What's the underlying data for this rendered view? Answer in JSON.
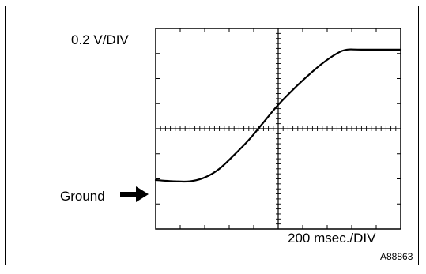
{
  "labels": {
    "vertical_scale": "0.2 V/DIV",
    "horizontal_scale": "200 msec./DIV",
    "ground_label": "Ground",
    "figure_id": "A88863"
  },
  "graticule": {
    "divisions_x": 10,
    "divisions_y": 8,
    "minor_ticks_per_division": 5
  },
  "waveform": {
    "description_free": true,
    "unit_x": "divisions",
    "unit_y": "divisions from ground",
    "points": [
      [
        0,
        1.0
      ],
      [
        0.8,
        0.95
      ],
      [
        1.4,
        0.95
      ],
      [
        2.0,
        1.1
      ],
      [
        2.6,
        1.45
      ],
      [
        3.2,
        2.0
      ],
      [
        3.8,
        2.6
      ],
      [
        4.4,
        3.3
      ],
      [
        5.0,
        4.0
      ],
      [
        5.6,
        4.6
      ],
      [
        6.2,
        5.15
      ],
      [
        6.8,
        5.65
      ],
      [
        7.4,
        6.05
      ],
      [
        7.8,
        6.2
      ],
      [
        8.4,
        6.2
      ],
      [
        10.0,
        6.2
      ]
    ]
  },
  "colors": {
    "trace": "#000000",
    "grid": "#000000",
    "background": "#ffffff"
  },
  "icons": {
    "ground_marker": "arrow-right-icon"
  }
}
